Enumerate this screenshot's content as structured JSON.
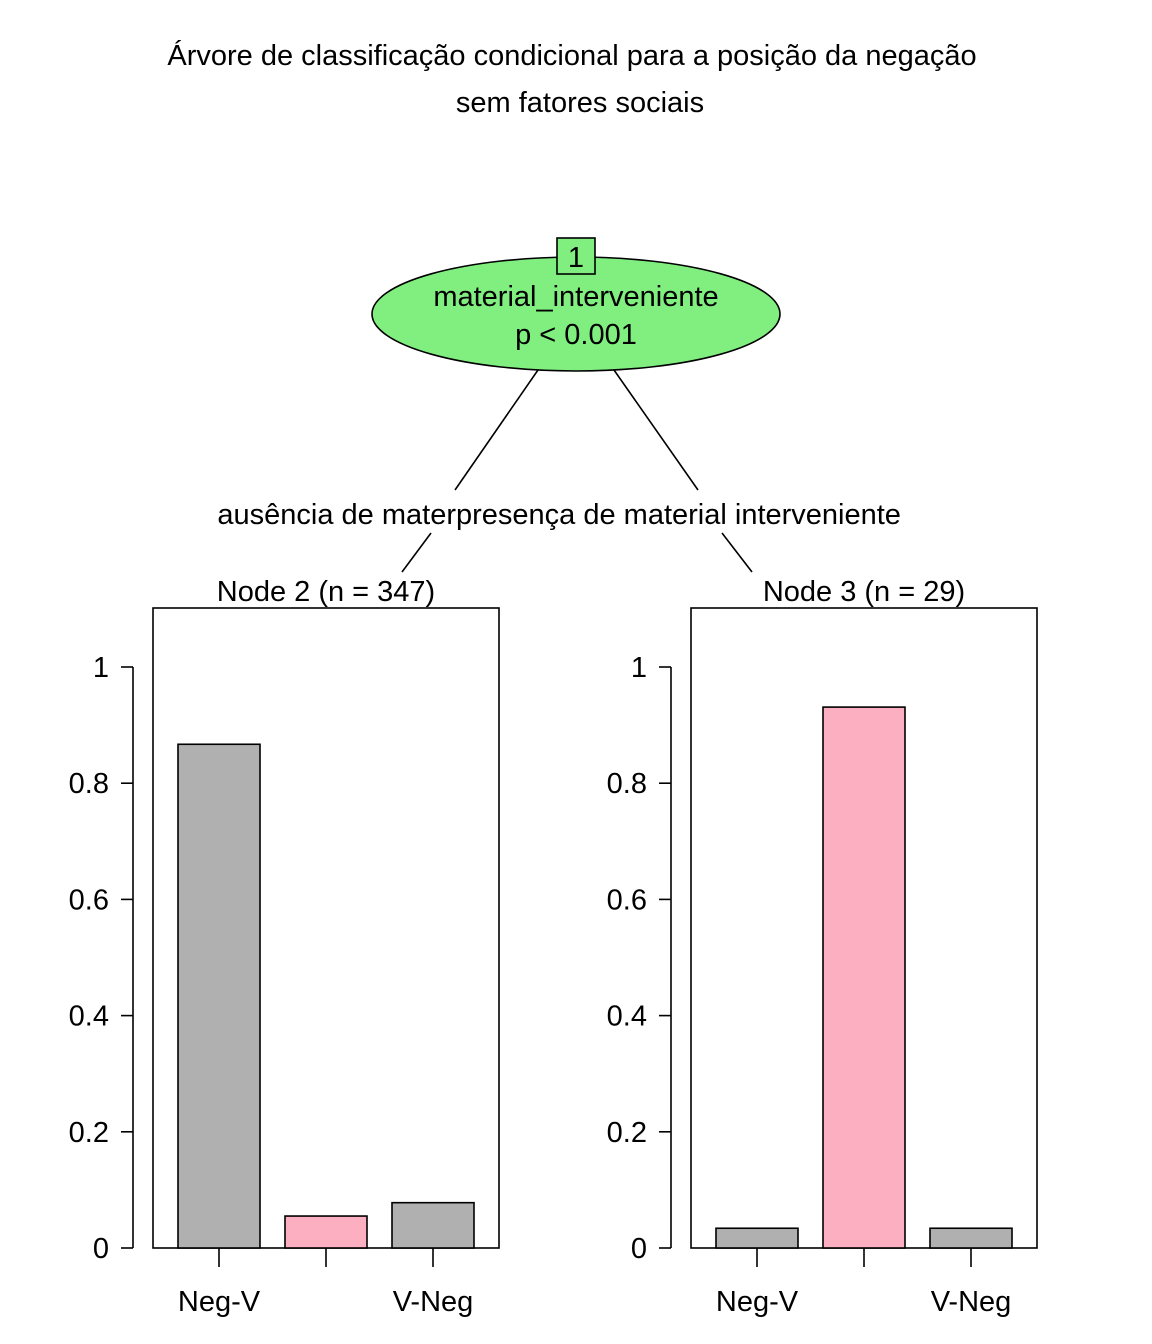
{
  "chart_data": {
    "type": "bar",
    "title_lines": [
      "Árvore de classificação condicional para a posição da negação",
      "sem fatores sociais"
    ],
    "root": {
      "id": "1",
      "variable": "material_interveniente",
      "pvalue": "p < 0.001",
      "fill": "#80ef80"
    },
    "edges": [
      {
        "label": "ausência de mater"
      },
      {
        "label": "presença de material interveniente"
      }
    ],
    "categories": [
      "Neg-V",
      "",
      "V-Neg"
    ],
    "ylim": [
      0,
      1
    ],
    "yticks": [
      0,
      0.2,
      0.4,
      0.6,
      0.8,
      1
    ],
    "ytick_labels": [
      "0",
      "0.2",
      "0.4",
      "0.6",
      "0.8",
      "1"
    ],
    "bar_colors": [
      "#b0b0b0",
      "#fcafc1",
      "#b0b0b0"
    ],
    "panels": [
      {
        "title": "Node 2 (n = 347)",
        "values": [
          0.867,
          0.055,
          0.078
        ]
      },
      {
        "title": "Node 3 (n = 29)",
        "values": [
          0.034,
          0.931,
          0.034
        ]
      }
    ]
  }
}
